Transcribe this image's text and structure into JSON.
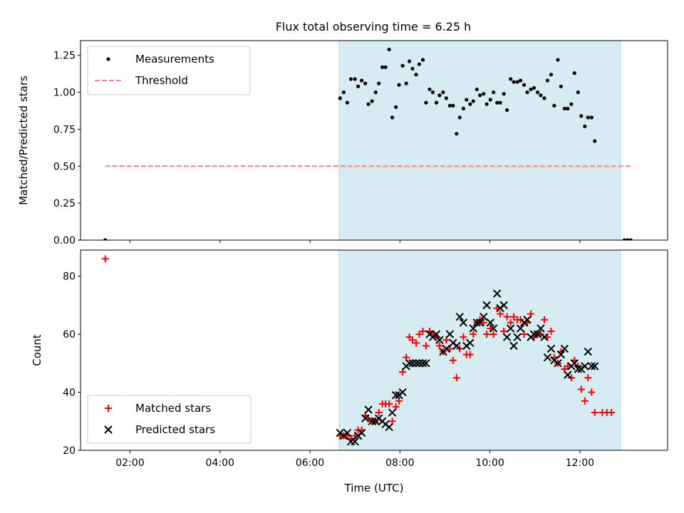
{
  "title": "Flux total observing time = 6.25 h",
  "colors": {
    "measurement": "#000000",
    "threshold": "#ff7f7f",
    "matched": "#ff0000",
    "predicted": "#000000",
    "band_fill": "#add8e6"
  },
  "chart_data": [
    {
      "type": "scatter",
      "name": "ratio-panel",
      "ylabel": "Matched/Predicted stars",
      "xlabel": "",
      "xlim": [
        0.9,
        13.95
      ],
      "ylim": [
        0,
        1.35
      ],
      "yticks": [
        0.0,
        0.25,
        0.5,
        0.75,
        1.0,
        1.25
      ],
      "ytick_labels": [
        "0.00",
        "0.25",
        "0.50",
        "0.75",
        "1.00",
        "1.25"
      ],
      "xticks": [
        2,
        4,
        6,
        8,
        10,
        12
      ],
      "xtick_labels": [],
      "shaded_span": [
        6.65,
        12.9
      ],
      "legend": [
        "Measurements",
        "Threshold"
      ],
      "threshold": {
        "name": "Threshold",
        "y": 0.5,
        "x_range": [
          1.45,
          13.13
        ]
      },
      "series": [
        {
          "name": "Measurements",
          "points": [
            [
              1.45,
              0
            ],
            [
              6.67,
              0.96
            ],
            [
              6.75,
              1.0
            ],
            [
              6.83,
              0.93
            ],
            [
              6.91,
              1.09
            ],
            [
              7.0,
              1.09
            ],
            [
              7.07,
              1.04
            ],
            [
              7.15,
              1.08
            ],
            [
              7.23,
              1.06
            ],
            [
              7.3,
              0.92
            ],
            [
              7.38,
              0.94
            ],
            [
              7.46,
              1.0
            ],
            [
              7.53,
              1.06
            ],
            [
              7.61,
              1.17
            ],
            [
              7.68,
              1.17
            ],
            [
              7.76,
              1.29
            ],
            [
              7.83,
              0.83
            ],
            [
              7.91,
              0.9
            ],
            [
              7.98,
              1.05
            ],
            [
              8.06,
              1.18
            ],
            [
              8.14,
              1.06
            ],
            [
              8.21,
              1.21
            ],
            [
              8.28,
              1.16
            ],
            [
              8.36,
              1.12
            ],
            [
              8.43,
              1.19
            ],
            [
              8.51,
              1.22
            ],
            [
              8.58,
              0.93
            ],
            [
              8.66,
              1.02
            ],
            [
              8.73,
              1.0
            ],
            [
              8.81,
              0.93
            ],
            [
              8.88,
              0.98
            ],
            [
              8.96,
              1.0
            ],
            [
              9.03,
              0.96
            ],
            [
              9.11,
              0.91
            ],
            [
              9.18,
              0.91
            ],
            [
              9.26,
              0.72
            ],
            [
              9.33,
              0.83
            ],
            [
              9.41,
              0.89
            ],
            [
              9.48,
              0.95
            ],
            [
              9.56,
              0.92
            ],
            [
              9.63,
              0.94
            ],
            [
              9.71,
              1.02
            ],
            [
              9.78,
              0.98
            ],
            [
              9.86,
              0.99
            ],
            [
              9.93,
              0.92
            ],
            [
              10.01,
              0.95
            ],
            [
              10.08,
              1.0
            ],
            [
              10.16,
              0.93
            ],
            [
              10.23,
              0.93
            ],
            [
              10.31,
              0.99
            ],
            [
              10.38,
              0.88
            ],
            [
              10.46,
              1.09
            ],
            [
              10.53,
              1.07
            ],
            [
              10.61,
              1.07
            ],
            [
              10.68,
              1.08
            ],
            [
              10.76,
              1.05
            ],
            [
              10.83,
              1.0
            ],
            [
              10.91,
              1.02
            ],
            [
              10.98,
              1.03
            ],
            [
              11.06,
              1.0
            ],
            [
              11.13,
              0.98
            ],
            [
              11.21,
              0.96
            ],
            [
              11.28,
              1.08
            ],
            [
              11.36,
              1.12
            ],
            [
              11.43,
              0.91
            ],
            [
              11.51,
              1.22
            ],
            [
              11.58,
              1.04
            ],
            [
              11.66,
              0.89
            ],
            [
              11.73,
              0.89
            ],
            [
              11.81,
              0.92
            ],
            [
              11.88,
              1.13
            ],
            [
              11.96,
              1.0
            ],
            [
              12.03,
              0.84
            ],
            [
              12.11,
              0.77
            ],
            [
              12.18,
              0.83
            ],
            [
              12.26,
              0.83
            ],
            [
              12.33,
              0.67
            ],
            [
              12.99,
              0.0
            ],
            [
              13.06,
              0.0
            ],
            [
              13.13,
              0.0
            ]
          ]
        }
      ]
    },
    {
      "type": "scatter",
      "name": "count-panel",
      "ylabel": "Count",
      "xlabel": "Time (UTC)",
      "xlim": [
        0.9,
        13.95
      ],
      "ylim": [
        20,
        89
      ],
      "yticks": [
        20,
        40,
        60,
        80
      ],
      "ytick_labels": [
        "20",
        "40",
        "60",
        "80"
      ],
      "xticks": [
        2,
        4,
        6,
        8,
        10,
        12
      ],
      "xtick_labels": [
        "02:00",
        "04:00",
        "06:00",
        "08:00",
        "10:00",
        "12:00"
      ],
      "shaded_span": [
        6.65,
        12.9
      ],
      "legend": [
        "Matched stars",
        "Predicted stars"
      ],
      "series": [
        {
          "name": "Matched stars",
          "marker": "plus",
          "points": [
            [
              1.45,
              86
            ],
            [
              6.67,
              25
            ],
            [
              6.75,
              25
            ],
            [
              6.83,
              25
            ],
            [
              6.91,
              24
            ],
            [
              7.0,
              25
            ],
            [
              7.07,
              27
            ],
            [
              7.15,
              27
            ],
            [
              7.23,
              32
            ],
            [
              7.3,
              31
            ],
            [
              7.38,
              30
            ],
            [
              7.46,
              30
            ],
            [
              7.53,
              33
            ],
            [
              7.61,
              36
            ],
            [
              7.68,
              36
            ],
            [
              7.76,
              36
            ],
            [
              7.83,
              30
            ],
            [
              7.91,
              35
            ],
            [
              7.98,
              37
            ],
            [
              8.06,
              47
            ],
            [
              8.14,
              52
            ],
            [
              8.21,
              59
            ],
            [
              8.28,
              58
            ],
            [
              8.36,
              57
            ],
            [
              8.43,
              60
            ],
            [
              8.51,
              61
            ],
            [
              8.58,
              56
            ],
            [
              8.66,
              61
            ],
            [
              8.73,
              60
            ],
            [
              8.81,
              59
            ],
            [
              8.88,
              56
            ],
            [
              8.96,
              54
            ],
            [
              9.03,
              58
            ],
            [
              9.11,
              55
            ],
            [
              9.18,
              51
            ],
            [
              9.26,
              45
            ],
            [
              9.33,
              55
            ],
            [
              9.41,
              59
            ],
            [
              9.48,
              53
            ],
            [
              9.56,
              53
            ],
            [
              9.63,
              60
            ],
            [
              9.71,
              64
            ],
            [
              9.78,
              65
            ],
            [
              9.86,
              64
            ],
            [
              9.93,
              60
            ],
            [
              10.01,
              62
            ],
            [
              10.08,
              60
            ],
            [
              10.16,
              69
            ],
            [
              10.23,
              67
            ],
            [
              10.31,
              61
            ],
            [
              10.38,
              66
            ],
            [
              10.46,
              64
            ],
            [
              10.53,
              66
            ],
            [
              10.61,
              65
            ],
            [
              10.68,
              65
            ],
            [
              10.76,
              60
            ],
            [
              10.83,
              64
            ],
            [
              10.91,
              67
            ],
            [
              10.98,
              59
            ],
            [
              11.06,
              60
            ],
            [
              11.13,
              60
            ],
            [
              11.21,
              65
            ],
            [
              11.28,
              59
            ],
            [
              11.36,
              61
            ],
            [
              11.43,
              52
            ],
            [
              11.51,
              50
            ],
            [
              11.58,
              54
            ],
            [
              11.66,
              48
            ],
            [
              11.73,
              49
            ],
            [
              11.81,
              45
            ],
            [
              11.88,
              51
            ],
            [
              11.96,
              49
            ],
            [
              12.03,
              41
            ],
            [
              12.11,
              37
            ],
            [
              12.18,
              45
            ],
            [
              12.26,
              40
            ],
            [
              12.33,
              33
            ],
            [
              12.5,
              33
            ],
            [
              12.6,
              33
            ],
            [
              12.7,
              33
            ]
          ]
        },
        {
          "name": "Predicted stars",
          "marker": "x",
          "points": [
            [
              6.67,
              26
            ],
            [
              6.75,
              25
            ],
            [
              6.83,
              26
            ],
            [
              6.91,
              23
            ],
            [
              7.0,
              23
            ],
            [
              7.07,
              25
            ],
            [
              7.15,
              26
            ],
            [
              7.23,
              31
            ],
            [
              7.3,
              34
            ],
            [
              7.38,
              30
            ],
            [
              7.46,
              30
            ],
            [
              7.53,
              31
            ],
            [
              7.61,
              30
            ],
            [
              7.68,
              29
            ],
            [
              7.76,
              28
            ],
            [
              7.83,
              33
            ],
            [
              7.91,
              39
            ],
            [
              7.98,
              39
            ],
            [
              8.06,
              40
            ],
            [
              8.14,
              49
            ],
            [
              8.21,
              50
            ],
            [
              8.28,
              50
            ],
            [
              8.36,
              50
            ],
            [
              8.43,
              50
            ],
            [
              8.51,
              50
            ],
            [
              8.58,
              50
            ],
            [
              8.66,
              60
            ],
            [
              8.73,
              59
            ],
            [
              8.81,
              60
            ],
            [
              8.88,
              58
            ],
            [
              8.96,
              54
            ],
            [
              9.03,
              55
            ],
            [
              9.11,
              60
            ],
            [
              9.18,
              57
            ],
            [
              9.26,
              56
            ],
            [
              9.33,
              66
            ],
            [
              9.41,
              64
            ],
            [
              9.48,
              56
            ],
            [
              9.56,
              57
            ],
            [
              9.63,
              62
            ],
            [
              9.71,
              64
            ],
            [
              9.78,
              64
            ],
            [
              9.86,
              66
            ],
            [
              9.93,
              70
            ],
            [
              10.01,
              64
            ],
            [
              10.08,
              62
            ],
            [
              10.16,
              74
            ],
            [
              10.23,
              69
            ],
            [
              10.31,
              70
            ],
            [
              10.38,
              59
            ],
            [
              10.46,
              62
            ],
            [
              10.53,
              56
            ],
            [
              10.61,
              59
            ],
            [
              10.68,
              62
            ],
            [
              10.76,
              64
            ],
            [
              10.83,
              65
            ],
            [
              10.91,
              59
            ],
            [
              10.98,
              60
            ],
            [
              11.06,
              60
            ],
            [
              11.13,
              62
            ],
            [
              11.21,
              59
            ],
            [
              11.28,
              52
            ],
            [
              11.36,
              55
            ],
            [
              11.43,
              51
            ],
            [
              11.51,
              50
            ],
            [
              11.58,
              53
            ],
            [
              11.66,
              55
            ],
            [
              11.73,
              46
            ],
            [
              11.81,
              49
            ],
            [
              11.88,
              50
            ],
            [
              11.96,
              48
            ],
            [
              12.03,
              48
            ],
            [
              12.11,
              49
            ],
            [
              12.18,
              54
            ],
            [
              12.26,
              49
            ],
            [
              12.33,
              49
            ]
          ]
        }
      ]
    }
  ]
}
